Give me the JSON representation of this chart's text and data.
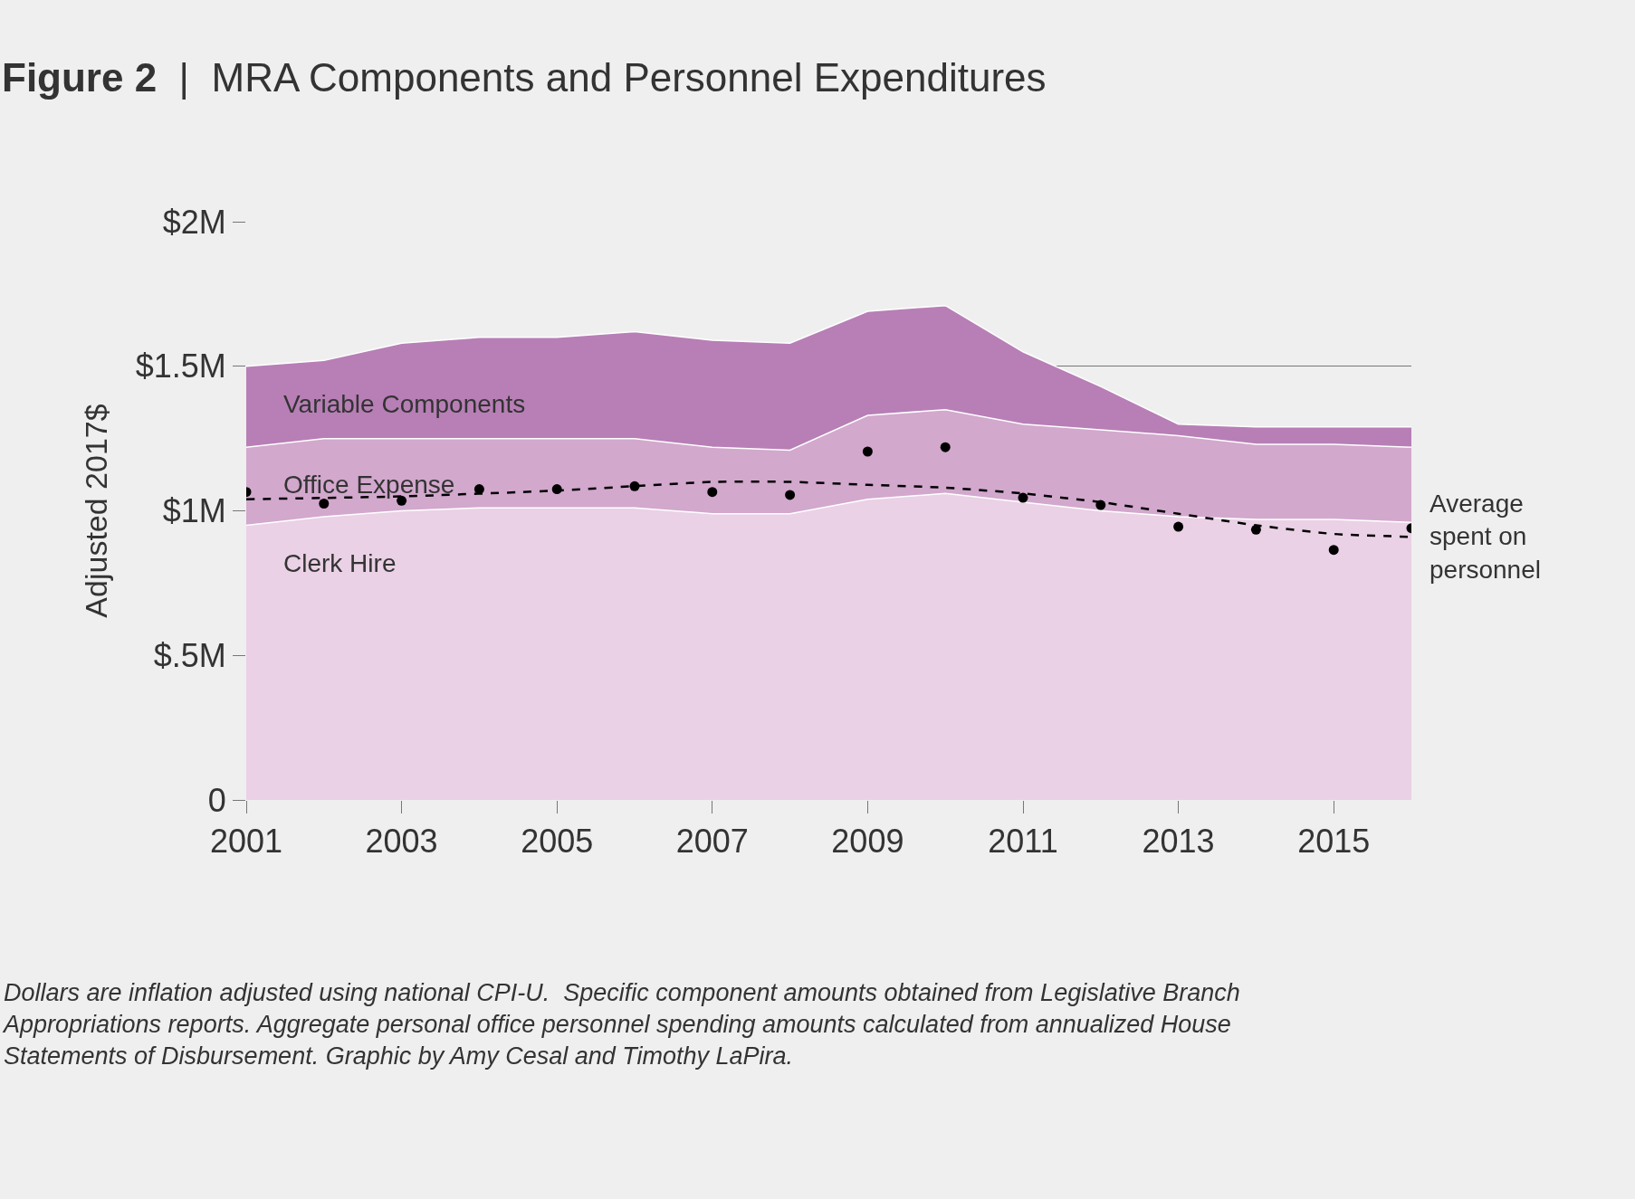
{
  "chart_data": {
    "type": "area",
    "stacked": true,
    "title": "Figure 2 | MRA Components and Personnel Expenditures",
    "ylabel": "Adjusted 2017$",
    "x": [
      2001,
      2002,
      2003,
      2004,
      2005,
      2006,
      2007,
      2008,
      2009,
      2010,
      2011,
      2012,
      2013,
      2014,
      2015,
      2016
    ],
    "xlim": [
      2001,
      2016
    ],
    "xticks": [
      2001,
      2003,
      2005,
      2007,
      2009,
      2011,
      2013,
      2015
    ],
    "ylim": [
      0,
      2
    ],
    "yticks": [
      {
        "value": 0,
        "label": "0"
      },
      {
        "value": 0.5,
        "label": "$.5M"
      },
      {
        "value": 1,
        "label": "$1M"
      },
      {
        "value": 1.5,
        "label": "$1.5M"
      },
      {
        "value": 2,
        "label": "$2M"
      }
    ],
    "grid": "y",
    "legend": false,
    "series": [
      {
        "name": "Clerk Hire",
        "color": "#ead1e5",
        "values": [
          0.95,
          0.98,
          1.0,
          1.01,
          1.01,
          1.01,
          0.99,
          0.99,
          1.04,
          1.06,
          1.03,
          1.0,
          0.98,
          0.97,
          0.97,
          0.96
        ]
      },
      {
        "name": "Office Expense",
        "color": "#d2a8cd",
        "values": [
          0.27,
          0.27,
          0.25,
          0.24,
          0.24,
          0.24,
          0.23,
          0.22,
          0.29,
          0.29,
          0.27,
          0.28,
          0.28,
          0.26,
          0.26,
          0.26
        ]
      },
      {
        "name": "Variable Components",
        "color": "#b77fb6",
        "values": [
          0.28,
          0.27,
          0.33,
          0.35,
          0.35,
          0.37,
          0.37,
          0.37,
          0.36,
          0.36,
          0.25,
          0.15,
          0.04,
          0.06,
          0.06,
          0.07
        ]
      },
      {
        "type": "scatter",
        "color": "#000000",
        "marker": "circle",
        "values": [
          1.065,
          1.025,
          1.035,
          1.075,
          1.075,
          1.085,
          1.065,
          1.055,
          1.205,
          1.22,
          1.045,
          1.02,
          0.945,
          0.935,
          0.865,
          0.94
        ]
      },
      {
        "type": "line",
        "name": "Average spent on personnel",
        "color": "#000000",
        "line_style": "dashed",
        "x": [
          2001,
          2003,
          2005,
          2007,
          2008,
          2009,
          2010,
          2011,
          2012,
          2013,
          2014,
          2015,
          2016
        ],
        "values": [
          1.04,
          1.05,
          1.07,
          1.1,
          1.1,
          1.09,
          1.08,
          1.06,
          1.03,
          0.99,
          0.95,
          0.92,
          0.91
        ]
      }
    ],
    "annotations": [
      "Dollars are inflation adjusted using national CPI-U.  Specific component amounts obtained from Legislative Branch Appropriations reports. Aggregate personal office personnel spending amounts calculated from annualized House Statements of Disbursement. Graphic by Amy Cesal and Timothy LaPira."
    ]
  }
}
